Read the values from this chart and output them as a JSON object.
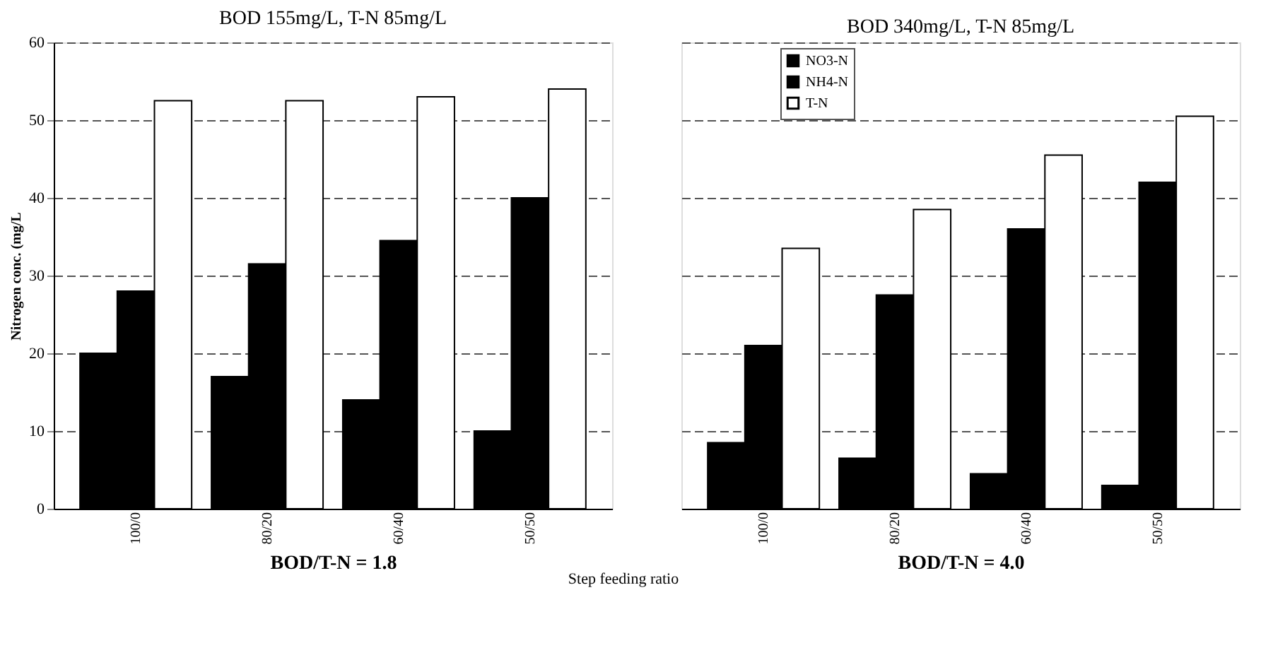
{
  "chart_data": [
    {
      "type": "bar",
      "title": "BOD 155mg/L, T-N 85mg/L",
      "xlabel": "BOD/T-N = 1.8",
      "ylabel": "Nitrogen conc. (mg/L",
      "categories": [
        "100/0",
        "80/20",
        "60/40",
        "50/50"
      ],
      "series": [
        {
          "color": "#000000",
          "values": [
            20,
            17,
            14,
            10
          ]
        },
        {
          "color": "#000000",
          "values": [
            28,
            31.5,
            34.5,
            40
          ]
        },
        {
          "color": "#ffffff",
          "values": [
            52.5,
            52.5,
            53,
            54
          ]
        }
      ],
      "ylim": [
        0,
        60
      ],
      "yticks": [
        0,
        10,
        20,
        30,
        40,
        50,
        60
      ],
      "grid": "y",
      "legend": false,
      "annotations": [
        "Step feeding ratio"
      ]
    },
    {
      "type": "bar",
      "title": "BOD 340mg/L, T-N 85mg/L",
      "xlabel": "BOD/T-N = 4.0",
      "categories": [
        "100/0",
        "80/20",
        "60/40",
        "50/50"
      ],
      "series": [
        {
          "name": "NO3-N",
          "color": "#000000",
          "values": [
            8.5,
            6.5,
            4.5,
            3
          ]
        },
        {
          "name": "NH4-N",
          "color": "#000000",
          "values": [
            21,
            27.5,
            36,
            42
          ]
        },
        {
          "name": "T-N",
          "color": "#ffffff",
          "values": [
            33.5,
            38.5,
            45.5,
            50.5
          ]
        }
      ],
      "ylim": [
        0,
        60
      ],
      "yticks": [
        0,
        10,
        20,
        30,
        40,
        50,
        60
      ],
      "grid": "y",
      "legend": "top left",
      "tick_labels": "x"
    }
  ]
}
